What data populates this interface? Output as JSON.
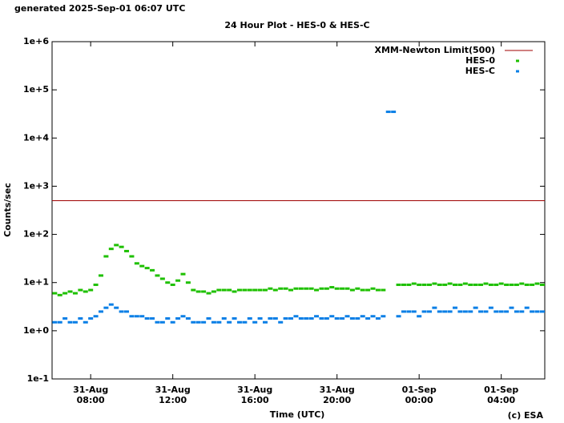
{
  "chart_data": {
    "type": "scatter",
    "header": "generated 2025-Sep-01 06:07 UTC",
    "title": "24 Hour Plot - HES-0 & HES-C",
    "xlabel": "Time (UTC)",
    "ylabel": "Counts/sec",
    "credit": "(c) ESA",
    "log_y": true,
    "legend": "upper right",
    "xlim": [
      6.12,
      30.12
    ],
    "xticks": [
      {
        "value": 8,
        "label": "31-Aug 08:00"
      },
      {
        "value": 12,
        "label": "31-Aug 12:00"
      },
      {
        "value": 16,
        "label": "31-Aug 16:00"
      },
      {
        "value": 20,
        "label": "31-Aug 20:00"
      },
      {
        "value": 24,
        "label": "01-Sep 00:00"
      },
      {
        "value": 28,
        "label": "01-Sep 04:00"
      }
    ],
    "ylim": [
      0.1,
      1000000
    ],
    "yticks": [
      {
        "value": 0.1,
        "label": "1e-1"
      },
      {
        "value": 1,
        "label": "1e+0"
      },
      {
        "value": 10,
        "label": "1e+1"
      },
      {
        "value": 100,
        "label": "1e+2"
      },
      {
        "value": 1000,
        "label": "1e+3"
      },
      {
        "value": 10000,
        "label": "1e+4"
      },
      {
        "value": 100000,
        "label": "1e+5"
      },
      {
        "value": 1000000,
        "label": "1e+6"
      }
    ],
    "limit": {
      "name": "XMM-Newton Limit(500)",
      "color": "#a00000",
      "value": 500
    },
    "x": [
      6.25,
      6.5,
      6.75,
      7,
      7.25,
      7.5,
      7.75,
      8,
      8.25,
      8.5,
      8.75,
      9,
      9.25,
      9.5,
      9.75,
      10,
      10.25,
      10.5,
      10.75,
      11,
      11.25,
      11.5,
      11.75,
      12,
      12.25,
      12.5,
      12.75,
      13,
      13.25,
      13.5,
      13.75,
      14,
      14.25,
      14.5,
      14.75,
      15,
      15.25,
      15.5,
      15.75,
      16,
      16.25,
      16.5,
      16.75,
      17,
      17.25,
      17.5,
      17.75,
      18,
      18.25,
      18.5,
      18.75,
      19,
      19.25,
      19.5,
      19.75,
      20,
      20.25,
      20.5,
      20.75,
      21,
      21.25,
      21.5,
      21.75,
      22,
      22.25,
      22.5,
      22.75,
      23,
      23.25,
      23.5,
      23.75,
      24,
      24.25,
      24.5,
      24.75,
      25,
      25.25,
      25.5,
      25.75,
      26,
      26.25,
      26.5,
      26.75,
      27,
      27.25,
      27.5,
      27.75,
      28,
      28.25,
      28.5,
      28.75,
      29,
      29.25,
      29.5,
      29.75,
      30
    ],
    "series": [
      {
        "name": "HES-0",
        "color": "#1ec000",
        "values": [
          6,
          5.5,
          6,
          6.5,
          6,
          7,
          6.5,
          7,
          9,
          14,
          35,
          50,
          60,
          55,
          45,
          35,
          25,
          22,
          20,
          18,
          14,
          12,
          10,
          9,
          11,
          15,
          10,
          7,
          6.5,
          6.5,
          6,
          6.5,
          7,
          7,
          7,
          6.5,
          7,
          7,
          7,
          7,
          7,
          7,
          7.5,
          7,
          7.5,
          7.5,
          7,
          7.5,
          7.5,
          7.5,
          7.5,
          7,
          7.5,
          7.5,
          8,
          7.5,
          7.5,
          7.5,
          7,
          7.5,
          7,
          7,
          7.5,
          7,
          7,
          null,
          null,
          9,
          9,
          9,
          9.5,
          9,
          9,
          9,
          9.5,
          9,
          9,
          9.5,
          9,
          9,
          9.5,
          9,
          9,
          9,
          9.5,
          9,
          9,
          9.5,
          9,
          9,
          9,
          9.5,
          9,
          9,
          9.5,
          9
        ]
      },
      {
        "name": "HES-C",
        "color": "#0a7fe6",
        "values": [
          1.5,
          1.5,
          1.8,
          1.5,
          1.5,
          1.8,
          1.5,
          1.8,
          2,
          2.5,
          3,
          3.5,
          3,
          2.5,
          2.5,
          2,
          2,
          2,
          1.8,
          1.8,
          1.5,
          1.5,
          1.8,
          1.5,
          1.8,
          2,
          1.8,
          1.5,
          1.5,
          1.5,
          1.8,
          1.5,
          1.5,
          1.8,
          1.5,
          1.8,
          1.5,
          1.5,
          1.8,
          1.5,
          1.8,
          1.5,
          1.8,
          1.8,
          1.5,
          1.8,
          1.8,
          2,
          1.8,
          1.8,
          1.8,
          2,
          1.8,
          1.8,
          2,
          1.8,
          1.8,
          2,
          1.8,
          1.8,
          2,
          1.8,
          2,
          1.8,
          2,
          35000,
          35000,
          2,
          2.5,
          2.5,
          2.5,
          2,
          2.5,
          2.5,
          3,
          2.5,
          2.5,
          2.5,
          3,
          2.5,
          2.5,
          2.5,
          3,
          2.5,
          2.5,
          3,
          2.5,
          2.5,
          2.5,
          3,
          2.5,
          2.5,
          3,
          2.5,
          2.5,
          2.5
        ]
      }
    ]
  }
}
